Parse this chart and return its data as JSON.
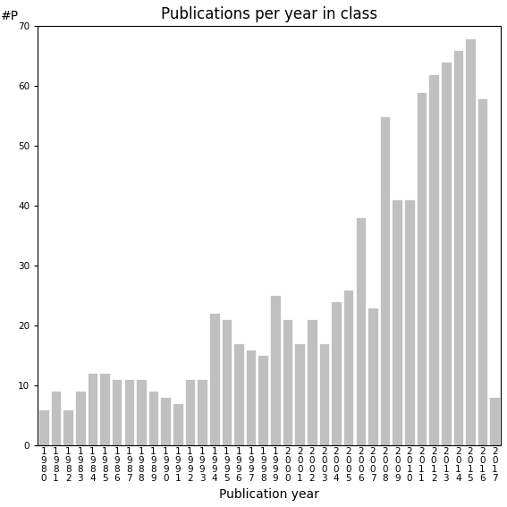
{
  "title": "Publications per year in class",
  "xlabel": "Publication year",
  "ylabel": "#P",
  "years": [
    "1980",
    "1981",
    "1982",
    "1983",
    "1984",
    "1985",
    "1986",
    "1987",
    "1988",
    "1989",
    "1990",
    "1991",
    "1992",
    "1993",
    "1994",
    "1995",
    "1996",
    "1997",
    "1998",
    "1999",
    "2000",
    "2001",
    "2002",
    "2003",
    "2004",
    "2005",
    "2006",
    "2007",
    "2008",
    "2009",
    "2010",
    "2011",
    "2012",
    "2013",
    "2014",
    "2015",
    "2016",
    "2017"
  ],
  "values": [
    6,
    9,
    6,
    9,
    12,
    12,
    11,
    11,
    11,
    9,
    8,
    7,
    11,
    11,
    22,
    21,
    17,
    16,
    15,
    25,
    21,
    17,
    21,
    17,
    24,
    26,
    38,
    23,
    55,
    41,
    41,
    59,
    62,
    64,
    66,
    68,
    58,
    8
  ],
  "bar_color": "#c0c0c0",
  "bar_edgecolor": "#ffffff",
  "ylim": [
    0,
    70
  ],
  "yticks": [
    0,
    10,
    20,
    30,
    40,
    50,
    60,
    70
  ],
  "background_color": "#ffffff",
  "title_fontsize": 12,
  "label_fontsize": 10,
  "tick_fontsize": 7.5
}
